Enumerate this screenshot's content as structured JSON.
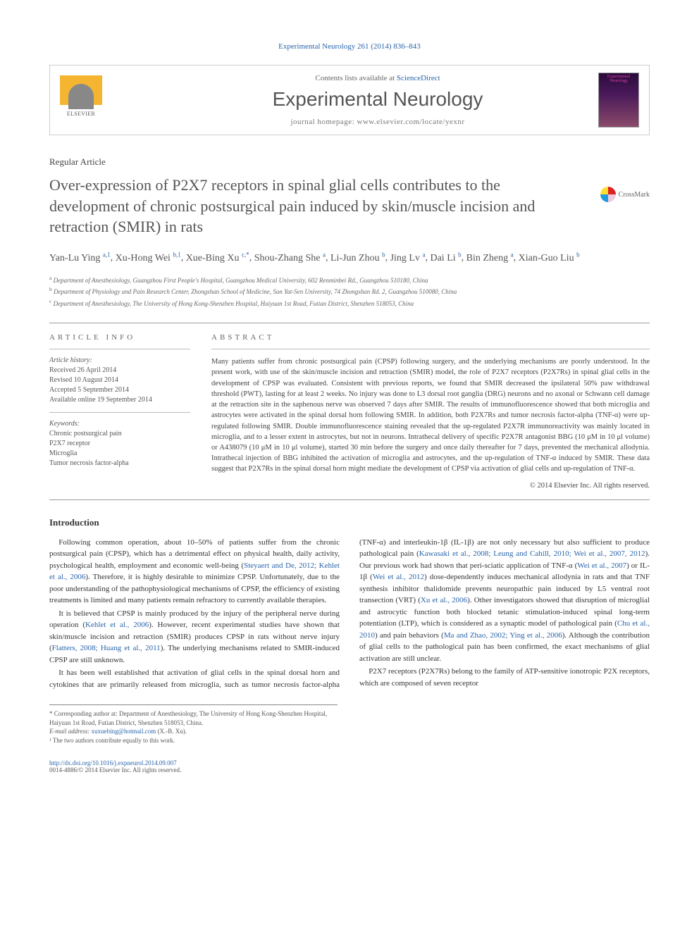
{
  "header": {
    "citation": "Experimental Neurology 261 (2014) 836–843",
    "contents_prefix": "Contents lists available at ",
    "contents_link": "ScienceDirect",
    "journal_name": "Experimental Neurology",
    "homepage_label": "journal homepage: ",
    "homepage": "www.elsevier.com/locate/yexnr",
    "publisher": "ELSEVIER",
    "cover_label": "Experimental Neurology"
  },
  "article": {
    "type": "Regular Article",
    "title": "Over-expression of P2X7 receptors in spinal glial cells contributes to the development of chronic postsurgical pain induced by skin/muscle incision and retraction (SMIR) in rats",
    "crossmark": "CrossMark"
  },
  "authors_line": "Yan-Lu Ying a,1, Xu-Hong Wei b,1, Xue-Bing Xu c,*, Shou-Zhang She a, Li-Jun Zhou b, Jing Lv a, Dai Li b, Bin Zheng a, Xian-Guo Liu b",
  "authors": [
    {
      "name": "Yan-Lu Ying",
      "sup": "a,1"
    },
    {
      "name": "Xu-Hong Wei",
      "sup": "b,1"
    },
    {
      "name": "Xue-Bing Xu",
      "sup": "c,",
      "star": true
    },
    {
      "name": "Shou-Zhang She",
      "sup": "a"
    },
    {
      "name": "Li-Jun Zhou",
      "sup": "b"
    },
    {
      "name": "Jing Lv",
      "sup": "a"
    },
    {
      "name": "Dai Li",
      "sup": "b"
    },
    {
      "name": "Bin Zheng",
      "sup": "a"
    },
    {
      "name": "Xian-Guo Liu",
      "sup": "b"
    }
  ],
  "affiliations": [
    {
      "sup": "a",
      "text": "Department of Anesthesiology, Guangzhou First People's Hospital, Guangzhou Medical University, 602 Renminbei Rd., Guangzhou 510180, China"
    },
    {
      "sup": "b",
      "text": "Department of Physiology and Pain Research Center, Zhongshan School of Medicine, Sun Yat-Sen University, 74 Zhongshan Rd. 2, Guangzhou 510080, China"
    },
    {
      "sup": "c",
      "text": "Department of Anesthesiology, The University of Hong Kong-Shenzhen Hospital, Haiyuan 1st Road, Futian District, Shenzhen 518053, China"
    }
  ],
  "article_info": {
    "heading": "article info",
    "history_label": "Article history:",
    "history": [
      "Received 26 April 2014",
      "Revised 10 August 2014",
      "Accepted 5 September 2014",
      "Available online 19 September 2014"
    ],
    "keywords_label": "Keywords:",
    "keywords": [
      "Chronic postsurgical pain",
      "P2X7 receptor",
      "Microglia",
      "Tumor necrosis factor-alpha"
    ]
  },
  "abstract": {
    "heading": "abstract",
    "body": "Many patients suffer from chronic postsurgical pain (CPSP) following surgery, and the underlying mechanisms are poorly understood. In the present work, with use of the skin/muscle incision and retraction (SMIR) model, the role of P2X7 receptors (P2X7Rs) in spinal glial cells in the development of CPSP was evaluated. Consistent with previous reports, we found that SMIR decreased the ipsilateral 50% paw withdrawal threshold (PWT), lasting for at least 2 weeks. No injury was done to L3 dorsal root ganglia (DRG) neurons and no axonal or Schwann cell damage at the retraction site in the saphenous nerve was observed 7 days after SMIR. The results of immunofluorescence showed that both microglia and astrocytes were activated in the spinal dorsal horn following SMIR. In addition, both P2X7Rs and tumor necrosis factor-alpha (TNF-α) were up-regulated following SMIR. Double immunofluorescence staining revealed that the up-regulated P2X7R immunoreactivity was mainly located in microglia, and to a lesser extent in astrocytes, but not in neurons. Intrathecal delivery of specific P2X7R antagonist BBG (10 μM in 10 μl volume) or A438079 (10 μM in 10 μl volume), started 30 min before the surgery and once daily thereafter for 7 days, prevented the mechanical allodynia. Intrathecal injection of BBG inhibited the activation of microglia and astrocytes, and the up-regulation of TNF-α induced by SMIR. These data suggest that P2X7Rs in the spinal dorsal horn might mediate the development of CPSP via activation of glial cells and up-regulation of TNF-α.",
    "copyright": "© 2014 Elsevier Inc. All rights reserved."
  },
  "body": {
    "intro_heading": "Introduction",
    "p1_a": "Following common operation, about 10–50% of patients suffer from the chronic postsurgical pain (CPSP), which has a detrimental effect on physical health, daily activity, psychological health, employment and economic well-being (",
    "p1_link1": "Steyaert and De, 2012; Kehlet et al., 2006",
    "p1_b": "). Therefore, it is highly desirable to minimize CPSP. Unfortunately, due to the poor understanding of the pathophysiological mechanisms of CPSP, the efficiency of existing treatments is limited and many patients remain refractory to currently available therapies.",
    "p2_a": "It is believed that CPSP is mainly produced by the injury of the peripheral nerve during operation (",
    "p2_link1": "Kehlet et al., 2006",
    "p2_b": "). However, recent experimental studies have shown that skin/muscle incision and retraction (SMIR) produces CPSP in rats without nerve injury (",
    "p2_link2": "Flatters, 2008; ",
    "p2_link3": "Huang et al., 2011",
    "p2_c": "). The underlying mechanisms related to SMIR-induced CPSP are still unknown.",
    "p3_a": "It has been well established that activation of glial cells in the spinal dorsal horn and cytokines that are primarily released from microglia, such as tumor necrosis factor-alpha (TNF-α) and interleukin-1β (IL-1β) are not only necessary but also sufficient to produce pathological pain (",
    "p3_link1": "Kawasaki et al., 2008; Leung and Cahill, 2010; Wei et al., 2007, 2012",
    "p3_b": "). Our previous work had shown that peri-sciatic application of TNF-α (",
    "p3_link2": "Wei et al., 2007",
    "p3_c": ") or IL-1β (",
    "p3_link3": "Wei et al., 2012",
    "p3_d": ") dose-dependently induces mechanical allodynia in rats and that TNF synthesis inhibitor thalidomide prevents neuropathic pain induced by L5 ventral root transection (VRT) (",
    "p3_link4": "Xu et al., 2006",
    "p3_e": "). Other investigators showed that disruption of microglial and astrocytic function both blocked tetanic stimulation-induced spinal long-term potentiation (LTP), which is considered as a synaptic model of pathological pain (",
    "p3_link5": "Chu et al., 2010",
    "p3_f": ") and pain behaviors (",
    "p3_link6": "Ma and Zhao, 2002; Ying et al., 2006",
    "p3_g": "). Although the contribution of glial cells to the pathological pain has been confirmed, the exact mechanisms of glial activation are still unclear.",
    "p4": "P2X7 receptors (P2X7Rs) belong to the family of ATP-sensitive ionotropic P2X receptors, which are composed of seven receptor"
  },
  "footnotes": {
    "corr": "* Corresponding author at: Department of Anesthesiology, The University of Hong Kong-Shenzhen Hospital, Haiyuan 1st Road, Futian District, Shenzhen 518053, China.",
    "email_label": "E-mail address: ",
    "email": "xuxuebing@hotmail.com",
    "email_suffix": " (X.-B. Xu).",
    "shared": "¹ The two authors contribute equally to this work."
  },
  "footer": {
    "doi": "http://dx.doi.org/10.1016/j.expneurol.2014.09.007",
    "issn": "0014-4886/© 2014 Elsevier Inc. All rights reserved."
  },
  "colors": {
    "link": "#2864aa",
    "body": "#333333",
    "muted": "#666666",
    "border": "#cccccc"
  }
}
